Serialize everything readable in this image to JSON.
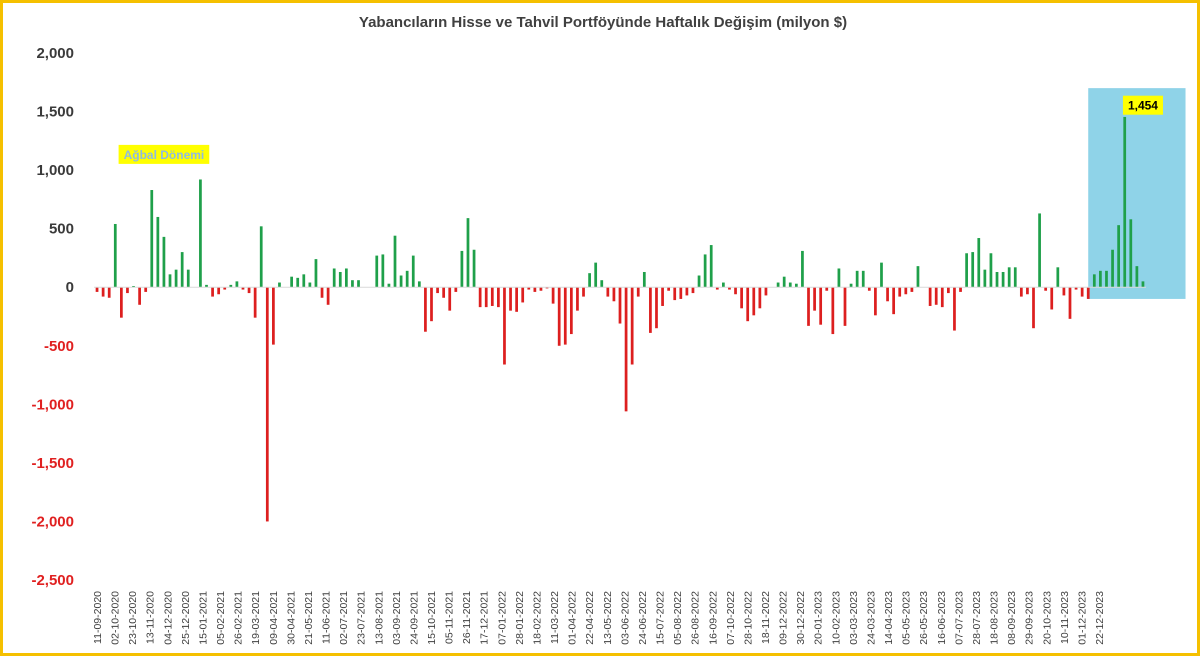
{
  "chart_data": {
    "type": "bar",
    "title": "Yabancıların Hisse ve Tahvil Portföyünde Haftalık Değişim (milyon $)",
    "xlabel": "",
    "ylabel": "",
    "ylim": [
      -2500,
      2000
    ],
    "yticks": [
      2000,
      1500,
      1000,
      500,
      0,
      -500,
      -1000,
      -1500,
      -2000,
      -2500
    ],
    "ytick_labels": [
      "2,000",
      "1,500",
      "1,000",
      "500",
      "0",
      "-500",
      "-1,000",
      "-1,500",
      "-2,000",
      "-2,500"
    ],
    "grid": false,
    "legend": "none",
    "colors": {
      "positive": "#1fa04a",
      "negative": "#dd1f1f",
      "positive_tick": "#3a3a3a",
      "negative_tick": "#e02020",
      "highlight_fill": "#8fd3e8",
      "label_bg": "#ffff00",
      "border": "#f5c000"
    },
    "x_tick_labels": [
      "11-09-2020",
      "02-10-2020",
      "23-10-2020",
      "13-11-2020",
      "04-12-2020",
      "25-12-2020",
      "15-01-2021",
      "05-02-2021",
      "26-02-2021",
      "19-03-2021",
      "09-04-2021",
      "30-04-2021",
      "21-05-2021",
      "11-06-2021",
      "02-07-2021",
      "23-07-2021",
      "13-08-2021",
      "03-09-2021",
      "24-09-2021",
      "15-10-2021",
      "05-11-2021",
      "26-11-2021",
      "17-12-2021",
      "07-01-2022",
      "28-01-2022",
      "18-02-2022",
      "11-03-2022",
      "01-04-2022",
      "22-04-2022",
      "13-05-2022",
      "03-06-2022",
      "24-06-2022",
      "15-07-2022",
      "05-08-2022",
      "26-08-2022",
      "16-09-2022",
      "07-10-2022",
      "28-10-2022",
      "18-11-2022",
      "09-12-2022",
      "30-12-2022",
      "20-01-2023",
      "10-02-2023",
      "03-03-2023",
      "24-03-2023",
      "14-04-2023",
      "05-05-2023",
      "26-05-2023",
      "16-06-2023",
      "07-07-2023",
      "28-07-2023",
      "18-08-2023",
      "08-09-2023",
      "29-09-2023",
      "20-10-2023",
      "10-11-2023",
      "01-12-2023",
      "22-12-2023"
    ],
    "values": [
      -40,
      -80,
      -90,
      540,
      -260,
      -50,
      10,
      -150,
      -40,
      830,
      600,
      430,
      110,
      150,
      300,
      150,
      0,
      920,
      20,
      -80,
      -60,
      -20,
      20,
      50,
      -20,
      -50,
      -260,
      520,
      -2000,
      -490,
      40,
      0,
      90,
      80,
      110,
      40,
      240,
      -90,
      -150,
      160,
      130,
      160,
      60,
      60,
      0,
      0,
      270,
      280,
      30,
      440,
      100,
      140,
      270,
      50,
      -380,
      -290,
      -50,
      -90,
      -200,
      -40,
      310,
      590,
      320,
      -170,
      -170,
      -160,
      -170,
      -660,
      -200,
      -210,
      -130,
      -20,
      -40,
      -30,
      -10,
      -140,
      -500,
      -490,
      -400,
      -200,
      -80,
      120,
      210,
      60,
      -80,
      -120,
      -310,
      -1060,
      -660,
      -80,
      130,
      -390,
      -350,
      -160,
      -30,
      -110,
      -100,
      -70,
      -50,
      100,
      280,
      360,
      -20,
      40,
      -20,
      -60,
      -180,
      -290,
      -240,
      -180,
      -70,
      0,
      40,
      90,
      40,
      30,
      310,
      -330,
      -200,
      -320,
      -30,
      -400,
      160,
      -330,
      30,
      140,
      140,
      -30,
      -240,
      210,
      -120,
      -230,
      -80,
      -60,
      -40,
      180,
      0,
      -160,
      -150,
      -170,
      -50,
      -370,
      -40,
      290,
      300,
      420,
      150,
      290,
      130,
      130,
      170,
      170,
      -80,
      -60,
      -350,
      630,
      -30,
      -190,
      170,
      -70,
      -270,
      -20,
      -80,
      -100,
      110,
      140,
      140,
      320,
      530,
      1454,
      580,
      180,
      50
    ],
    "annotations": [
      {
        "text": "Ağbal Dönemi",
        "x_index": 11,
        "y": 1130,
        "color": "#8fbce0",
        "bg": "#ffff00"
      },
      {
        "text": "1,454",
        "x_index": 172,
        "y": 1550,
        "color": "#000000",
        "bg": "#ffff00"
      }
    ],
    "highlight": {
      "from_index": 166,
      "to_index": 177,
      "ymin": -100,
      "ymax": 1700
    }
  }
}
